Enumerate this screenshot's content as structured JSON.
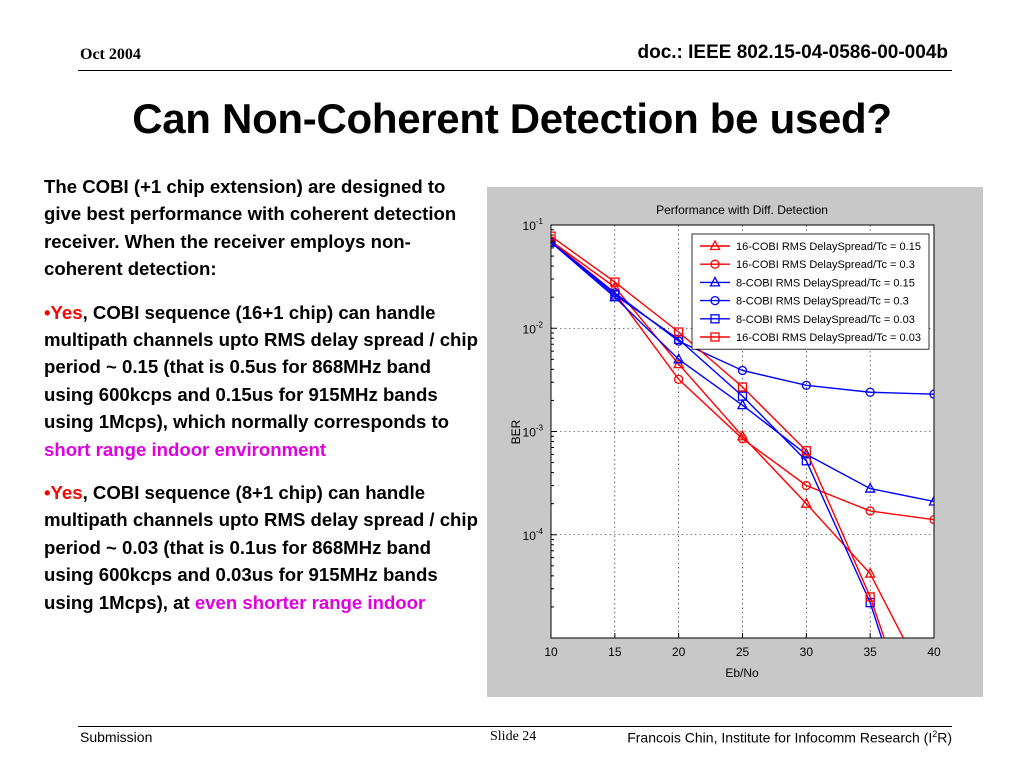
{
  "header": {
    "date": "Oct 2004",
    "doc_id": "doc.: IEEE 802.15-04-0586-00-004b"
  },
  "title": "Can Non-Coherent Detection be used?",
  "body": {
    "intro": "The COBI (+1 chip extension) are designed to give best performance with coherent detection receiver.  When the receiver employs non-coherent detection:",
    "bullet1": {
      "marker": "•",
      "yes": "Yes",
      "text": ", COBI sequence (16+1 chip) can handle multipath channels upto RMS delay spread / chip period ~ 0.15 (that is 0.5us for 868MHz band using 600kcps and 0.15us for 915MHz bands using 1Mcps), which normally corresponds to ",
      "highlight": "short range indoor environment"
    },
    "bullet2": {
      "marker": "•",
      "yes": "Yes",
      "text": ", COBI sequence (8+1 chip) can handle multipath channels upto RMS delay spread / chip period ~ 0.03 (that is 0.1us for 868MHz band using 600kcps and 0.03us for 915MHz bands using 1Mcps), at ",
      "highlight": "even shorter range indoor"
    }
  },
  "footer": {
    "left": "Submission",
    "slide_label": "Slide",
    "slide_number": "24",
    "author": "Francois Chin, Institute for Infocomm Research (I",
    "author_sup": "2",
    "author_end": "R)"
  },
  "chart_data": {
    "type": "line",
    "title": "Performance with Diff. Detection",
    "xlabel": "Eb/No",
    "ylabel": "BER",
    "x": [
      10,
      15,
      20,
      25,
      30,
      35,
      40
    ],
    "xlim": [
      10,
      40
    ],
    "ylim": [
      1e-05,
      0.1
    ],
    "yscale": "log",
    "x_ticks": [
      "10",
      "15",
      "20",
      "25",
      "30",
      "35",
      "40"
    ],
    "y_ticks": [
      {
        "value": 0.1,
        "base": "10",
        "exp": "-1"
      },
      {
        "value": 0.01,
        "base": "10",
        "exp": "-2"
      },
      {
        "value": 0.001,
        "base": "10",
        "exp": "-3"
      },
      {
        "value": 0.0001,
        "base": "10",
        "exp": "-4"
      }
    ],
    "grid": true,
    "legend_position": "top-right",
    "series": [
      {
        "name": "16-COBI RMS DelaySpread/Tc = 0.15",
        "color": "#ff0000",
        "marker": "triangle",
        "points": [
          [
            10,
            0.07
          ],
          [
            15,
            0.025
          ],
          [
            20,
            0.0045
          ],
          [
            25,
            0.0009
          ],
          [
            30,
            0.0002
          ],
          [
            35,
            4.2e-05
          ],
          [
            37.6,
            1e-05
          ]
        ]
      },
      {
        "name": "16-COBI RMS DelaySpread/Tc = 0.3",
        "color": "#ff0000",
        "marker": "circle",
        "points": [
          [
            10,
            0.07
          ],
          [
            15,
            0.022
          ],
          [
            20,
            0.0032
          ],
          [
            25,
            0.00085
          ],
          [
            30,
            0.0003
          ],
          [
            35,
            0.00017
          ],
          [
            40,
            0.00014
          ]
        ]
      },
      {
        "name": "8-COBI RMS DelaySpread/Tc = 0.15",
        "color": "#0000ff",
        "marker": "triangle",
        "points": [
          [
            10,
            0.068
          ],
          [
            15,
            0.02
          ],
          [
            20,
            0.005
          ],
          [
            25,
            0.0018
          ],
          [
            30,
            0.0006
          ],
          [
            35,
            0.00028
          ],
          [
            40,
            0.00021
          ]
        ]
      },
      {
        "name": "8-COBI RMS DelaySpread/Tc = 0.3",
        "color": "#0000ff",
        "marker": "circle",
        "points": [
          [
            10,
            0.068
          ],
          [
            15,
            0.022
          ],
          [
            20,
            0.0075
          ],
          [
            25,
            0.0039
          ],
          [
            30,
            0.0028
          ],
          [
            35,
            0.0024
          ],
          [
            40,
            0.0023
          ]
        ]
      },
      {
        "name": "8-COBI RMS DelaySpread/Tc = 0.03",
        "color": "#0000ff",
        "marker": "square",
        "points": [
          [
            10,
            0.068
          ],
          [
            15,
            0.021
          ],
          [
            20,
            0.0078
          ],
          [
            25,
            0.0022
          ],
          [
            30,
            0.00052
          ],
          [
            35,
            2.2e-05
          ],
          [
            35.9,
            1e-05
          ]
        ]
      },
      {
        "name": "16-COBI RMS DelaySpread/Tc = 0.03",
        "color": "#ff0000",
        "marker": "square",
        "points": [
          [
            10,
            0.078
          ],
          [
            15,
            0.028
          ],
          [
            20,
            0.0092
          ],
          [
            25,
            0.0027
          ],
          [
            30,
            0.00065
          ],
          [
            35,
            2.5e-05
          ],
          [
            36.1,
            1e-05
          ]
        ]
      }
    ]
  }
}
